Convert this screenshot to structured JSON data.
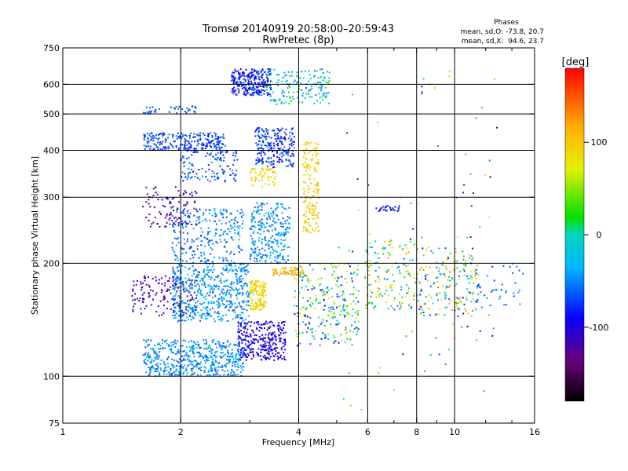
{
  "chart_data": {
    "type": "scatter",
    "title": "Tromsø 20140919 20:58:00–20:59:43",
    "subtitle": "RwPretec (8p)",
    "xlabel": "Frequency [MHz]",
    "ylabel": "Stationary phase Virtual Height [km]",
    "xscale": "log",
    "yscale": "log",
    "xlim": [
      1,
      16
    ],
    "ylim": [
      75,
      750
    ],
    "x_ticks": [
      1,
      2,
      4,
      6,
      8,
      10,
      16
    ],
    "x_tick_labels": [
      "1",
      "2",
      "4",
      "6",
      "8",
      "10",
      "16"
    ],
    "x_minor_ticks": [
      3,
      5,
      7,
      9,
      12,
      14
    ],
    "y_ticks": [
      75,
      100,
      200,
      300,
      400,
      500,
      600,
      750
    ],
    "y_tick_labels": [
      "75",
      "100",
      "200",
      "300",
      "400",
      "500",
      "600",
      "750"
    ],
    "x_gridlines": [
      2,
      4,
      6,
      8,
      10
    ],
    "y_gridlines": [
      100,
      200,
      300,
      400,
      500,
      600
    ],
    "grid": true,
    "legend": {
      "title": "Phases",
      "lines": [
        "mean, sd,O: -73.8, 20.7",
        "mean, sd,X:  94.6, 23.7"
      ],
      "placement": "top-right"
    },
    "colorbar": {
      "label": "[deg]",
      "range": [
        -180,
        180
      ],
      "ticks": [
        100,
        0,
        -100
      ],
      "tick_labels": [
        "100",
        "0",
        "-100"
      ],
      "colormap": "rainbow (black-purple-blue-cyan-green-yellow-orange-red)"
    },
    "clusters": [
      {
        "fx": [
          1.6,
          2.9
        ],
        "h": [
          100,
          125
        ],
        "phase": [
          -70,
          -25
        ],
        "n": 520
      },
      {
        "fx": [
          1.5,
          2.2
        ],
        "h": [
          145,
          185
        ],
        "phase": [
          -140,
          -100
        ],
        "n": 160
      },
      {
        "fx": [
          1.9,
          3.0
        ],
        "h": [
          140,
          200
        ],
        "phase": [
          -70,
          -20
        ],
        "n": 520
      },
      {
        "fx": [
          1.9,
          2.9
        ],
        "h": [
          200,
          280
        ],
        "phase": [
          -75,
          -30
        ],
        "n": 260
      },
      {
        "fx": [
          1.6,
          2.2
        ],
        "h": [
          250,
          320
        ],
        "phase": [
          -140,
          -100
        ],
        "n": 100
      },
      {
        "fx": [
          1.6,
          2.6
        ],
        "h": [
          400,
          445
        ],
        "phase": [
          -90,
          -50
        ],
        "n": 240
      },
      {
        "fx": [
          1.6,
          2.2
        ],
        "h": [
          500,
          525
        ],
        "phase": [
          -80,
          -50
        ],
        "n": 40
      },
      {
        "fx": [
          2.0,
          2.8
        ],
        "h": [
          330,
          400
        ],
        "phase": [
          -90,
          -40
        ],
        "n": 120
      },
      {
        "fx": [
          2.7,
          3.4
        ],
        "h": [
          560,
          660
        ],
        "phase": [
          -110,
          -50
        ],
        "n": 260
      },
      {
        "fx": [
          2.8,
          3.7
        ],
        "h": [
          110,
          140
        ],
        "phase": [
          -110,
          -80
        ],
        "n": 300
      },
      {
        "fx": [
          3.0,
          3.3
        ],
        "h": [
          150,
          180
        ],
        "phase": [
          60,
          120
        ],
        "n": 130
      },
      {
        "fx": [
          3.0,
          3.5
        ],
        "h": [
          320,
          360
        ],
        "phase": [
          70,
          110
        ],
        "n": 60
      },
      {
        "fx": [
          3.0,
          3.8
        ],
        "h": [
          200,
          290
        ],
        "phase": [
          -70,
          -20
        ],
        "n": 260
      },
      {
        "fx": [
          3.1,
          3.9
        ],
        "h": [
          360,
          460
        ],
        "phase": [
          -100,
          -50
        ],
        "n": 220
      },
      {
        "fx": [
          3.4,
          4.1
        ],
        "h": [
          185,
          195
        ],
        "phase": [
          90,
          140
        ],
        "n": 70
      },
      {
        "fx": [
          4.1,
          4.5
        ],
        "h": [
          240,
          420
        ],
        "phase": [
          80,
          110
        ],
        "n": 160
      },
      {
        "fx": [
          3.3,
          4.8
        ],
        "h": [
          530,
          660
        ],
        "phase": [
          -60,
          30
        ],
        "n": 150
      },
      {
        "fx": [
          3.9,
          5.7
        ],
        "h": [
          120,
          200
        ],
        "phase": [
          -100,
          100
        ],
        "n": 260
      },
      {
        "fx": [
          5.9,
          8.0
        ],
        "h": [
          150,
          230
        ],
        "phase": [
          -60,
          130
        ],
        "n": 160
      },
      {
        "fx": [
          8.0,
          11.5
        ],
        "h": [
          145,
          220
        ],
        "phase": [
          -90,
          140
        ],
        "n": 180
      },
      {
        "fx": [
          11.0,
          15.0
        ],
        "h": [
          150,
          200
        ],
        "phase": [
          -80,
          -40
        ],
        "n": 40
      },
      {
        "fx": [
          6.3,
          7.3
        ],
        "h": [
          275,
          285
        ],
        "phase": [
          -100,
          -70
        ],
        "n": 25
      },
      {
        "fx": [
          5.0,
          13.0
        ],
        "h": [
          80,
          650
        ],
        "phase": [
          -160,
          160
        ],
        "n": 90
      }
    ]
  }
}
